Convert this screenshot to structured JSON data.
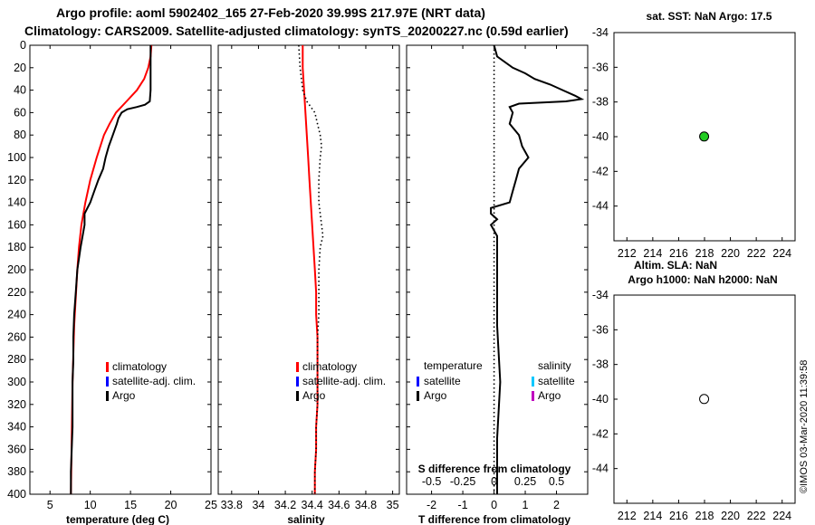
{
  "titles": {
    "line1": "Argo profile: aoml 5902402_165 27-Feb-2020 39.99S 217.97E (NRT data)",
    "line2": "Climatology: CARS2009. Satellite-adjusted climatology: synTS_20200227.nc (0.59d earlier)"
  },
  "watermark": "©IMOS 03-Mar-2020 11:39:58",
  "colors": {
    "climatology": "#ff0000",
    "satellite": "#0000ff",
    "argo": "#000000",
    "sat_cyan": "#00c8ff",
    "argo_magenta": "#c000c0",
    "marker_green": "#22cc22"
  },
  "legend_profile": [
    "climatology",
    "satellite-adj. clim.",
    "Argo"
  ],
  "legend_diff": {
    "temperature_header": "temperature",
    "salinity_header": "salinity",
    "items": [
      "satellite",
      "Argo"
    ]
  },
  "chart_data": [
    {
      "type": "line",
      "id": "temperature",
      "xlabel": "temperature (deg C)",
      "xlim": [
        2.5,
        25
      ],
      "xticks": [
        5,
        10,
        15,
        20,
        25
      ],
      "ylim": [
        0,
        400
      ],
      "yticks": [
        0,
        20,
        40,
        60,
        80,
        100,
        120,
        140,
        160,
        180,
        200,
        220,
        240,
        260,
        280,
        300,
        320,
        340,
        360,
        380,
        400
      ],
      "series": [
        {
          "name": "climatology",
          "color": "#ff0000",
          "depth": [
            0,
            10,
            20,
            30,
            40,
            50,
            60,
            70,
            80,
            100,
            120,
            140,
            160,
            180,
            200,
            250,
            300,
            350,
            400
          ],
          "values": [
            17.6,
            17.5,
            17.2,
            16.7,
            15.8,
            14.5,
            13.2,
            12.4,
            11.7,
            10.8,
            10.0,
            9.4,
            8.9,
            8.6,
            8.4,
            8.0,
            7.8,
            7.7,
            7.6
          ]
        },
        {
          "name": "Argo",
          "color": "#000000",
          "depth": [
            0,
            10,
            20,
            30,
            40,
            50,
            53,
            55,
            57,
            60,
            65,
            70,
            80,
            90,
            100,
            110,
            120,
            130,
            140,
            150,
            160,
            180,
            200,
            220,
            240,
            260,
            280,
            300,
            320,
            340,
            360,
            380,
            400
          ],
          "values": [
            17.5,
            17.5,
            17.5,
            17.5,
            17.5,
            17.4,
            16.8,
            15.8,
            14.6,
            13.9,
            13.5,
            13.3,
            12.8,
            12.3,
            11.9,
            11.6,
            11.0,
            10.5,
            10.0,
            9.3,
            9.3,
            8.8,
            8.4,
            8.2,
            8.0,
            7.9,
            7.9,
            7.8,
            7.8,
            7.8,
            7.7,
            7.6,
            7.6
          ]
        }
      ]
    },
    {
      "type": "line",
      "id": "salinity",
      "xlabel": "salinity",
      "xlim": [
        33.7,
        35.05
      ],
      "xticks": [
        33.8,
        34,
        34.2,
        34.4,
        34.6,
        34.8,
        35
      ],
      "xticklabels": [
        "33.8",
        "34",
        "34.2",
        "34.4",
        "34.6",
        "34.8",
        "35"
      ],
      "ylim": [
        0,
        400
      ],
      "series": [
        {
          "name": "climatology",
          "color": "#ff0000",
          "depth": [
            0,
            20,
            40,
            60,
            80,
            100,
            120,
            140,
            160,
            180,
            200,
            220,
            240,
            260,
            280,
            300,
            320,
            340,
            360,
            380,
            400
          ],
          "values": [
            34.33,
            34.33,
            34.34,
            34.35,
            34.36,
            34.37,
            34.38,
            34.39,
            34.4,
            34.41,
            34.42,
            34.43,
            34.43,
            34.44,
            34.44,
            34.44,
            34.44,
            34.43,
            34.43,
            34.42,
            34.42
          ]
        },
        {
          "name": "Argo",
          "color": "#000000",
          "style": "dotted",
          "depth": [
            0,
            20,
            40,
            50,
            60,
            70,
            80,
            90,
            100,
            120,
            140,
            160,
            170,
            180,
            200,
            220,
            240,
            260,
            280,
            300,
            320,
            340,
            360,
            380,
            400
          ],
          "values": [
            34.3,
            34.31,
            34.33,
            34.36,
            34.42,
            34.44,
            34.46,
            34.47,
            34.46,
            34.45,
            34.45,
            34.47,
            34.48,
            34.46,
            34.45,
            34.45,
            34.45,
            34.44,
            34.44,
            34.44,
            34.44,
            34.43,
            34.43,
            34.42,
            34.42
          ]
        }
      ]
    },
    {
      "type": "line",
      "id": "difference",
      "xlabel": "T difference from climatology",
      "xlabel_top": "S difference from climatology",
      "xlim": [
        -2.8,
        3.0
      ],
      "xticks": [
        -2,
        -1,
        0,
        1,
        2
      ],
      "xticks_top_labels": [
        "-0.5",
        "-0.25",
        "0",
        "0.25",
        "0.5"
      ],
      "ylim": [
        0,
        400
      ],
      "series": [
        {
          "name": "Argo T difference",
          "color": "#000000",
          "depth": [
            0,
            10,
            20,
            25,
            30,
            35,
            40,
            45,
            48,
            50,
            52,
            55,
            60,
            70,
            80,
            90,
            100,
            110,
            120,
            130,
            140,
            145,
            150,
            155,
            160,
            170,
            180,
            200,
            250,
            300,
            350,
            400
          ],
          "values": [
            0.0,
            0.1,
            0.6,
            1.0,
            1.3,
            1.8,
            2.2,
            2.6,
            2.8,
            2.3,
            0.8,
            0.5,
            0.6,
            0.5,
            0.8,
            0.9,
            1.1,
            0.8,
            0.7,
            0.6,
            0.5,
            -0.1,
            -0.1,
            0.1,
            -0.1,
            0.1,
            0.1,
            0.1,
            0.1,
            0.2,
            0.1,
            0.1
          ]
        },
        {
          "name": "climatology zero line",
          "color": "#000000",
          "style": "dotted",
          "depth": [
            0,
            400
          ],
          "values": [
            0,
            0
          ]
        }
      ]
    },
    {
      "type": "scatter",
      "id": "sst-map",
      "title": "sat. SST: NaN Argo: 17.5",
      "xlim": [
        211,
        225
      ],
      "ylim": [
        -46,
        -34
      ],
      "xticks": [
        212,
        214,
        216,
        218,
        220,
        222,
        224
      ],
      "yticks": [
        -34,
        -36,
        -38,
        -40,
        -42,
        -44
      ],
      "points": [
        {
          "x": 217.97,
          "y": -39.99,
          "color": "#22cc22"
        }
      ]
    },
    {
      "type": "scatter",
      "id": "sla-map",
      "title_line1": "Altim. SLA: NaN",
      "title_line2": "Argo h1000: NaN h2000: NaN",
      "xlim": [
        211,
        225
      ],
      "ylim": [
        -46,
        -34
      ],
      "xticks": [
        212,
        214,
        216,
        218,
        220,
        222,
        224
      ],
      "yticks": [
        -34,
        -36,
        -38,
        -40,
        -42,
        -44
      ],
      "points": [
        {
          "x": 217.97,
          "y": -39.99,
          "color": "#ffffff"
        }
      ]
    }
  ]
}
